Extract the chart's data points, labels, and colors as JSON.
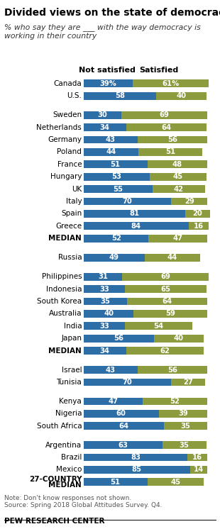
{
  "title": "Divided views on the state of democracy",
  "subtitle": "% who say they are ___ with the way democracy is\nworking in their country",
  "col_header_not": "Not satisfied",
  "col_header_sat": "Satisfied",
  "note": "Note: Don't know responses not shown.\nSource: Spring 2018 Global Attitudes Survey. Q4.",
  "source": "PEW RESEARCH CENTER",
  "blue_color": "#2E6EA6",
  "green_color": "#8B9B3E",
  "bar_height": 0.62,
  "bar_scale": 1.0,
  "countries": [
    {
      "name": "Canada",
      "not": 39,
      "sat": 61,
      "show_pct": true,
      "group": 0,
      "is_median": false
    },
    {
      "name": "U.S.",
      "not": 58,
      "sat": 40,
      "show_pct": false,
      "group": 0,
      "is_median": false
    },
    {
      "name": "Sweden",
      "not": 30,
      "sat": 69,
      "show_pct": false,
      "group": 1,
      "is_median": false
    },
    {
      "name": "Netherlands",
      "not": 34,
      "sat": 64,
      "show_pct": false,
      "group": 1,
      "is_median": false
    },
    {
      "name": "Germany",
      "not": 43,
      "sat": 56,
      "show_pct": false,
      "group": 1,
      "is_median": false
    },
    {
      "name": "Poland",
      "not": 44,
      "sat": 51,
      "show_pct": false,
      "group": 1,
      "is_median": false
    },
    {
      "name": "France",
      "not": 51,
      "sat": 48,
      "show_pct": false,
      "group": 1,
      "is_median": false
    },
    {
      "name": "Hungary",
      "not": 53,
      "sat": 45,
      "show_pct": false,
      "group": 1,
      "is_median": false
    },
    {
      "name": "UK",
      "not": 55,
      "sat": 42,
      "show_pct": false,
      "group": 1,
      "is_median": false
    },
    {
      "name": "Italy",
      "not": 70,
      "sat": 29,
      "show_pct": false,
      "group": 1,
      "is_median": false
    },
    {
      "name": "Spain",
      "not": 81,
      "sat": 20,
      "show_pct": false,
      "group": 1,
      "is_median": false
    },
    {
      "name": "Greece",
      "not": 84,
      "sat": 16,
      "show_pct": false,
      "group": 1,
      "is_median": false
    },
    {
      "name": "MEDIAN",
      "not": 52,
      "sat": 47,
      "show_pct": false,
      "group": 1,
      "is_median": true
    },
    {
      "name": "Russia",
      "not": 49,
      "sat": 44,
      "show_pct": false,
      "group": 2,
      "is_median": false
    },
    {
      "name": "Philippines",
      "not": 31,
      "sat": 69,
      "show_pct": false,
      "group": 3,
      "is_median": false
    },
    {
      "name": "Indonesia",
      "not": 33,
      "sat": 65,
      "show_pct": false,
      "group": 3,
      "is_median": false
    },
    {
      "name": "South Korea",
      "not": 35,
      "sat": 64,
      "show_pct": false,
      "group": 3,
      "is_median": false
    },
    {
      "name": "Australia",
      "not": 40,
      "sat": 59,
      "show_pct": false,
      "group": 3,
      "is_median": false
    },
    {
      "name": "India",
      "not": 33,
      "sat": 54,
      "show_pct": false,
      "group": 3,
      "is_median": false
    },
    {
      "name": "Japan",
      "not": 56,
      "sat": 40,
      "show_pct": false,
      "group": 3,
      "is_median": false
    },
    {
      "name": "MEDIAN",
      "not": 34,
      "sat": 62,
      "show_pct": false,
      "group": 3,
      "is_median": true
    },
    {
      "name": "Israel",
      "not": 43,
      "sat": 56,
      "show_pct": false,
      "group": 4,
      "is_median": false
    },
    {
      "name": "Tunisia",
      "not": 70,
      "sat": 27,
      "show_pct": false,
      "group": 4,
      "is_median": false
    },
    {
      "name": "Kenya",
      "not": 47,
      "sat": 52,
      "show_pct": false,
      "group": 5,
      "is_median": false
    },
    {
      "name": "Nigeria",
      "not": 60,
      "sat": 39,
      "show_pct": false,
      "group": 5,
      "is_median": false
    },
    {
      "name": "South Africa",
      "not": 64,
      "sat": 35,
      "show_pct": false,
      "group": 5,
      "is_median": false
    },
    {
      "name": "Argentina",
      "not": 63,
      "sat": 35,
      "show_pct": false,
      "group": 6,
      "is_median": false
    },
    {
      "name": "Brazil",
      "not": 83,
      "sat": 16,
      "show_pct": false,
      "group": 6,
      "is_median": false
    },
    {
      "name": "Mexico",
      "not": 85,
      "sat": 14,
      "show_pct": false,
      "group": 6,
      "is_median": false
    },
    {
      "name": "27-COUNTRY MEDIAN",
      "not": 51,
      "sat": 45,
      "show_pct": false,
      "group": 6,
      "is_median": true
    }
  ]
}
